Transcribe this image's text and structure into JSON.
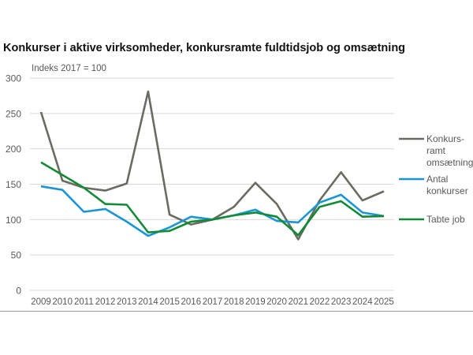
{
  "chart_data": {
    "type": "line",
    "title": "Konkurser i aktive virksomheder, konkursramte fuldtidsjob og omsætning",
    "subtitle": "Indeks 2017 = 100",
    "xlabel": "",
    "ylabel": "",
    "ylim": [
      0,
      300
    ],
    "yticks": [
      0,
      50,
      100,
      150,
      200,
      250,
      300
    ],
    "grid": true,
    "legend_position": "right",
    "x": [
      "2009",
      "2010",
      "2011",
      "2012",
      "2013",
      "2014",
      "2015",
      "2016",
      "2017",
      "2018",
      "2019",
      "2020",
      "2021",
      "2022",
      "2023",
      "2024",
      "2025"
    ],
    "series": [
      {
        "name": "Konkurs-ramt omsætning",
        "label_lines": [
          "Konkurs-",
          "ramt",
          "omsætning"
        ],
        "color": "#6b6b63",
        "values": [
          252,
          155,
          145,
          141,
          151,
          281,
          107,
          93,
          100,
          118,
          152,
          122,
          72,
          127,
          167,
          127,
          140
        ]
      },
      {
        "name": "Antal konkurser",
        "label_lines": [
          "Antal",
          "konkurser"
        ],
        "color": "#1b95d6",
        "values": [
          147,
          142,
          111,
          115,
          97,
          77,
          89,
          104,
          100,
          106,
          114,
          98,
          96,
          124,
          135,
          110,
          105
        ]
      },
      {
        "name": "Tabte job",
        "label_lines": [
          "Tabte job"
        ],
        "color": "#138a36",
        "values": [
          181,
          163,
          145,
          122,
          121,
          82,
          84,
          97,
          100,
          106,
          110,
          104,
          78,
          118,
          126,
          104,
          105
        ]
      }
    ]
  }
}
